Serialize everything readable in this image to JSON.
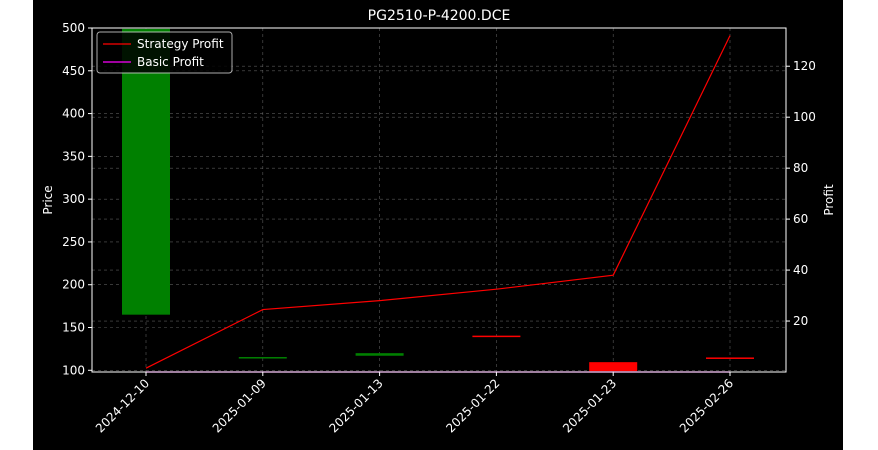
{
  "chart_data": {
    "type": "candlestick",
    "title": "PG2510-P-4200.DCE",
    "xlabel": "",
    "ylabel_left": "Price",
    "ylabel_right": "Profit",
    "categories": [
      "2024-12-10",
      "2025-01-09",
      "2025-01-13",
      "2025-01-22",
      "2025-01-23",
      "2025-02-26"
    ],
    "price_axis": {
      "ylim": [
        98,
        500
      ],
      "ticks": [
        100,
        150,
        200,
        250,
        300,
        350,
        400,
        450,
        500
      ],
      "tick_labels": [
        "100",
        "150",
        "200",
        "250",
        "300",
        "350",
        "400",
        "450",
        "500"
      ]
    },
    "profit_axis": {
      "ylim": [
        0,
        135
      ],
      "ticks": [
        20,
        40,
        60,
        80,
        100,
        120
      ],
      "tick_labels": [
        "20",
        "40",
        "60",
        "80",
        "100",
        "120"
      ]
    },
    "candles": [
      {
        "date": "2024-12-10",
        "low": 165,
        "high": 499,
        "direction": "up"
      },
      {
        "date": "2025-01-09",
        "low": 114,
        "high": 115.5,
        "direction": "up"
      },
      {
        "date": "2025-01-13",
        "low": 117,
        "high": 120,
        "direction": "up"
      },
      {
        "date": "2025-01-22",
        "low": 139,
        "high": 140.5,
        "direction": "down"
      },
      {
        "date": "2025-01-23",
        "low": 99,
        "high": 109.5,
        "direction": "down"
      },
      {
        "date": "2025-02-26",
        "low": 114,
        "high": 115,
        "direction": "down"
      }
    ],
    "series": [
      {
        "name": "Strategy Profit",
        "axis": "profit",
        "color": "#ff0000",
        "values": [
          1.5,
          24.5,
          28,
          32.5,
          38,
          132
        ]
      },
      {
        "name": "Basic Profit",
        "axis": "profit",
        "color": "#ff00ff",
        "values": [
          0,
          0,
          0,
          0,
          0,
          0
        ]
      }
    ],
    "colors": {
      "up": "#008000",
      "down": "#ff0000",
      "background": "#000000",
      "text": "#ffffff",
      "grid": "#808080"
    },
    "grid": true,
    "legend_position": "top-left"
  }
}
